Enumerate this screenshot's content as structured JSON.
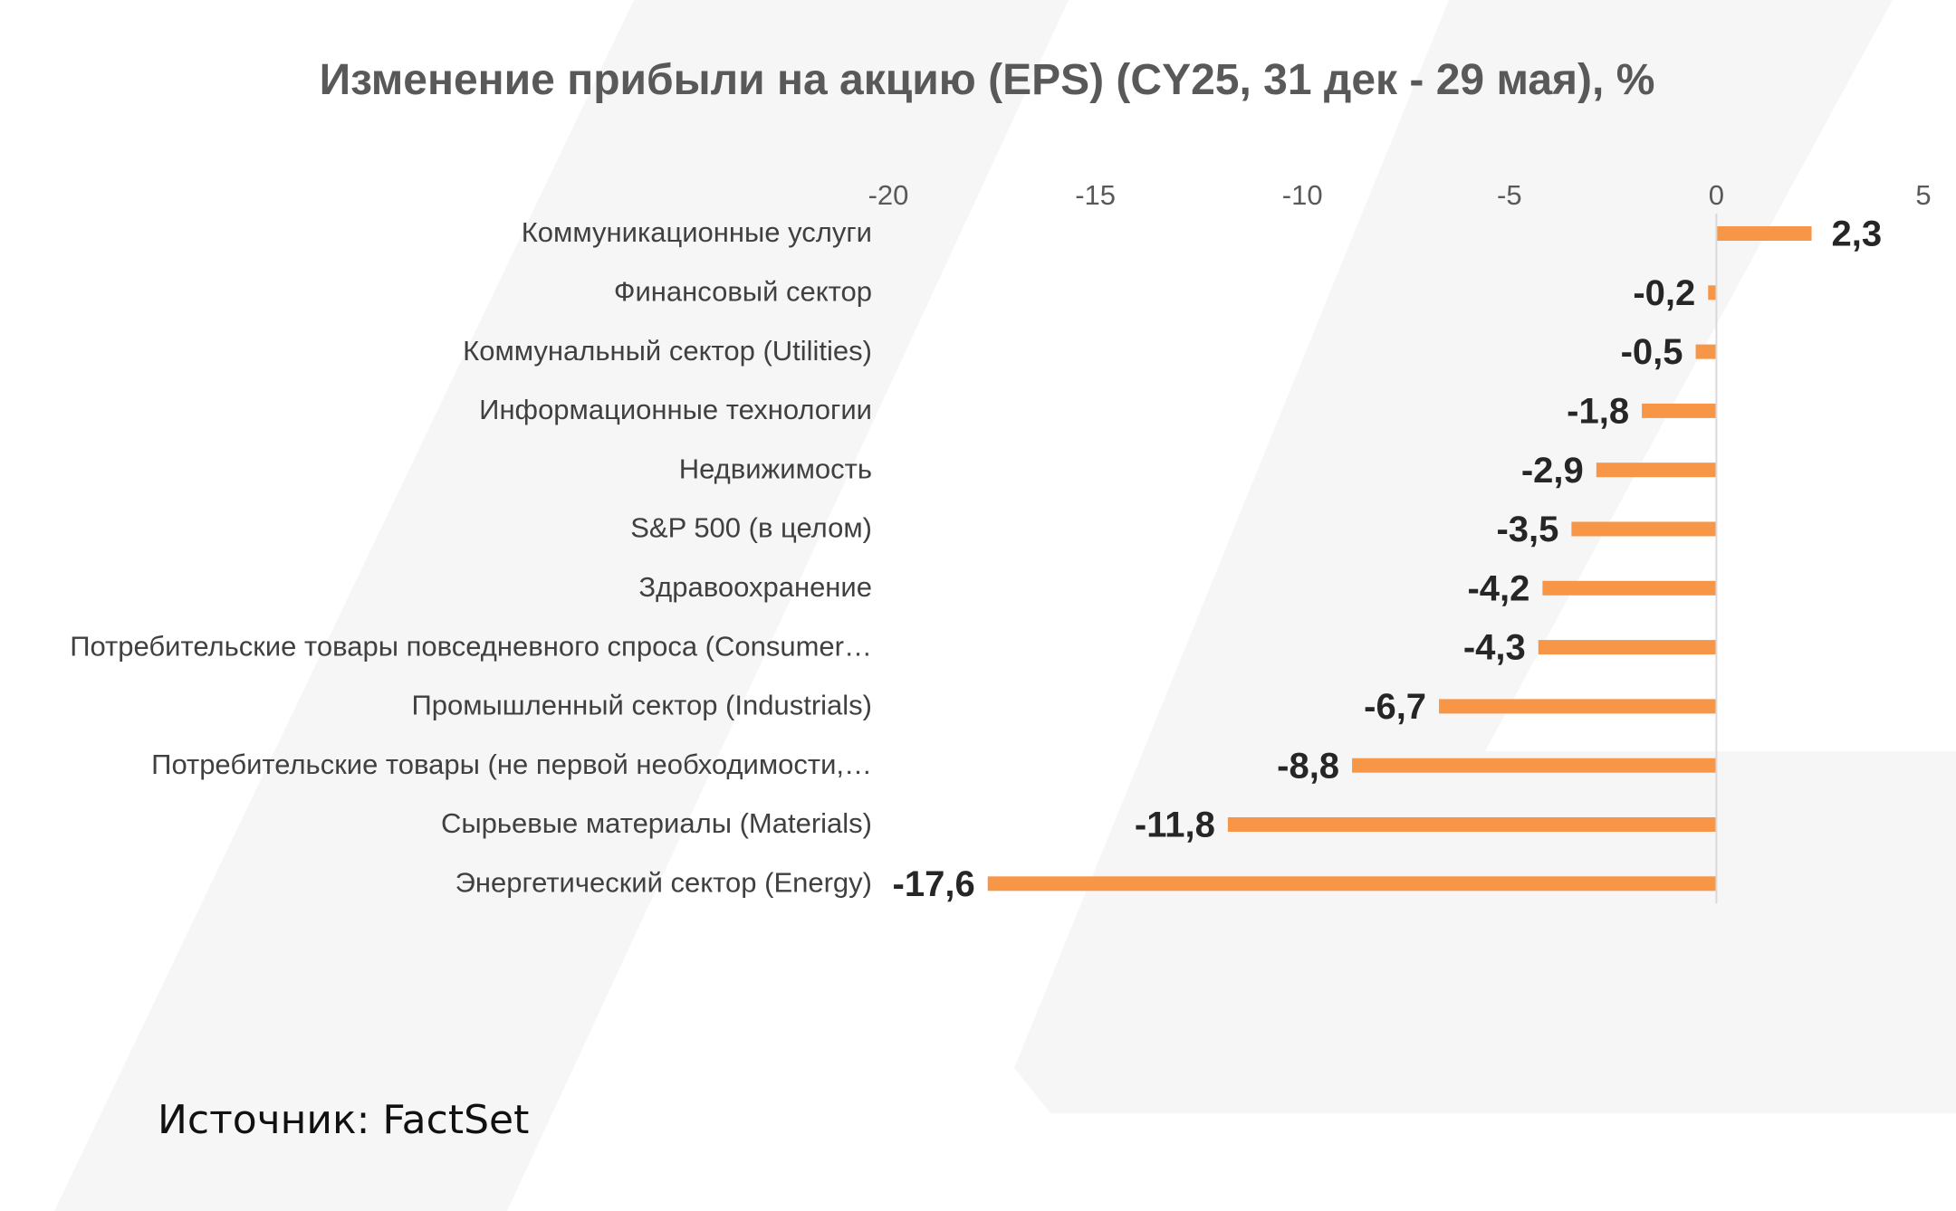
{
  "colors": {
    "bar": "#F79646",
    "watermark": "#F5F5F5",
    "axis": "#D9D9D9"
  },
  "source": "Источник: FactSet",
  "chart_data": {
    "type": "bar",
    "orientation": "horizontal",
    "title": "Изменение прибыли на акцию (EPS) (CY25, 31 дек - 29 мая), %",
    "xlim": [
      -20,
      5
    ],
    "xticks": [
      -20,
      -15,
      -10,
      -5,
      0,
      5
    ],
    "categories": [
      "Коммуникационные услуги",
      "Финансовый сектор",
      "Коммунальный сектор (Utilities)",
      "Информационные технологии",
      "Недвижимость",
      "S&P 500 (в целом)",
      "Здравоохранение",
      "Потребительские товары повседневного спроса (Consumer…",
      "Промышленный сектор (Industrials)",
      "Потребительские товары (не первой необходимости,…",
      "Сырьевые материалы (Materials)",
      "Энергетический сектор (Energy)"
    ],
    "values": [
      2.3,
      -0.2,
      -0.5,
      -1.8,
      -2.9,
      -3.5,
      -4.2,
      -4.3,
      -6.7,
      -8.8,
      -11.8,
      -17.6
    ],
    "value_labels": [
      "2,3",
      "-0,2",
      "-0,5",
      "-1,8",
      "-2,9",
      "-3,5",
      "-4,2",
      "-4,3",
      "-6,7",
      "-8,8",
      "-11,8",
      "-17,6"
    ]
  }
}
